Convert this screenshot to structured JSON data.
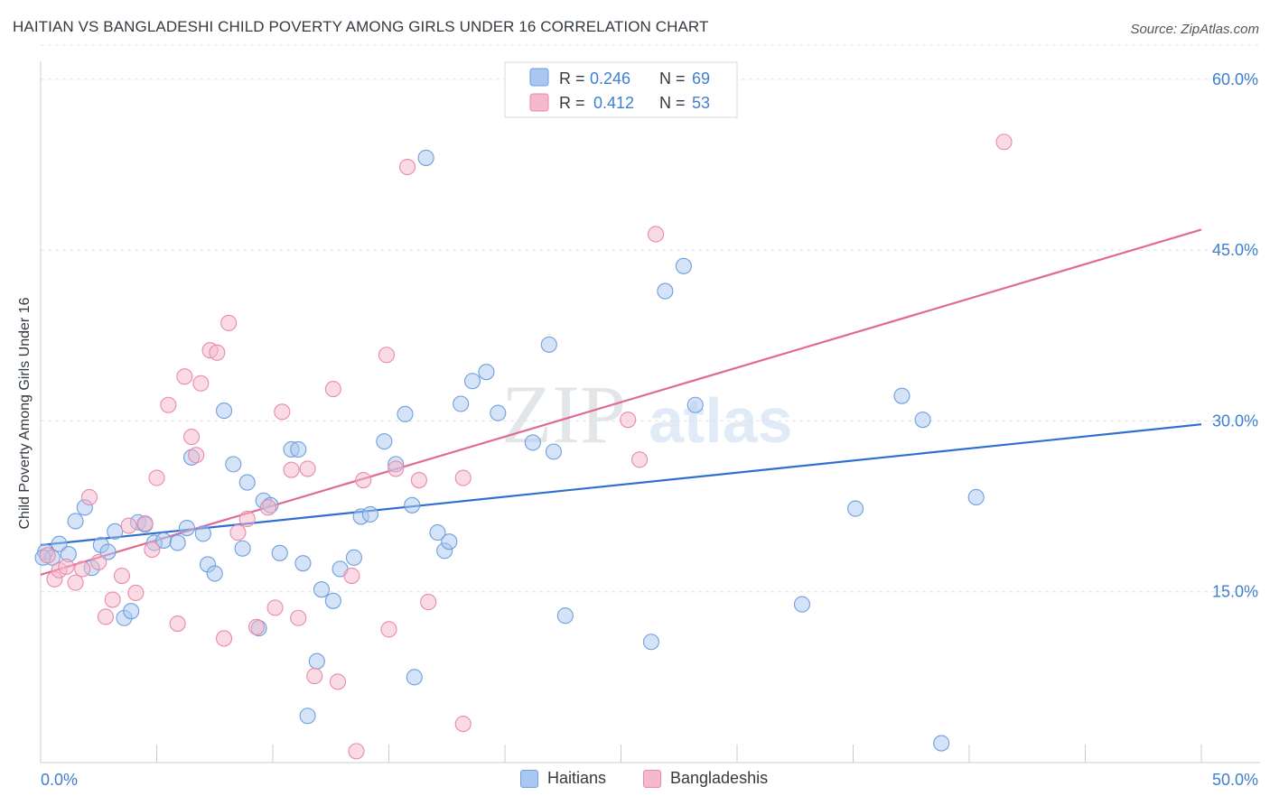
{
  "header": {
    "title": "HAITIAN VS BANGLADESHI CHILD POVERTY AMONG GIRLS UNDER 16 CORRELATION CHART",
    "source": "Source: ZipAtlas.com"
  },
  "watermark": {
    "zip": "ZIP",
    "atlas": "atlas"
  },
  "colors": {
    "haitians_fill": "#a9c7f0",
    "haitians_stroke": "#6f9fdc",
    "haitians_line": "#2f6fd0",
    "bangladeshis_fill": "#f6b8cc",
    "bangladeshis_stroke": "#e98aa9",
    "bangladeshis_line": "#e06a93",
    "tick_label": "#3f7fd0",
    "grid": "#dde1e6"
  },
  "legend": {
    "r_label": "R =",
    "n_label": "N =",
    "rows": [
      {
        "r": "0.246",
        "n": "69"
      },
      {
        "r": "0.412",
        "n": "53"
      }
    ]
  },
  "chart_data": {
    "type": "scatter",
    "title": "HAITIAN VS BANGLADESHI CHILD POVERTY AMONG GIRLS UNDER 16 CORRELATION CHART",
    "xlabel": "",
    "ylabel": "Child Poverty Among Girls Under 16",
    "xlim": [
      0,
      50
    ],
    "ylim": [
      0,
      63
    ],
    "x_tick_labels": [
      "0.0%",
      "50.0%"
    ],
    "y_ticks": [
      15,
      30,
      45,
      60
    ],
    "y_tick_labels": [
      "15.0%",
      "30.0%",
      "45.0%",
      "60.0%"
    ],
    "grid": true,
    "legend_position": "top-center",
    "series": [
      {
        "name": "Haitians",
        "trend": {
          "x": [
            0,
            50
          ],
          "y": [
            19.1,
            29.7
          ]
        },
        "points": [
          [
            0.2,
            18.5
          ],
          [
            0.5,
            18.0
          ],
          [
            0.8,
            19.2
          ],
          [
            1.2,
            18.3
          ],
          [
            1.5,
            21.2
          ],
          [
            1.9,
            22.4
          ],
          [
            2.2,
            17.1
          ],
          [
            2.6,
            19.1
          ],
          [
            2.9,
            18.5
          ],
          [
            3.2,
            20.3
          ],
          [
            3.6,
            12.7
          ],
          [
            3.9,
            13.3
          ],
          [
            4.2,
            21.1
          ],
          [
            4.5,
            20.9
          ],
          [
            4.9,
            19.3
          ],
          [
            5.3,
            19.5
          ],
          [
            5.9,
            19.3
          ],
          [
            6.3,
            20.6
          ],
          [
            6.5,
            26.8
          ],
          [
            7.0,
            20.1
          ],
          [
            7.2,
            17.4
          ],
          [
            7.5,
            16.6
          ],
          [
            7.9,
            30.9
          ],
          [
            8.3,
            26.2
          ],
          [
            8.7,
            18.8
          ],
          [
            8.9,
            24.6
          ],
          [
            9.4,
            11.8
          ],
          [
            9.6,
            23.0
          ],
          [
            9.9,
            22.6
          ],
          [
            10.3,
            18.4
          ],
          [
            10.8,
            27.5
          ],
          [
            11.1,
            27.5
          ],
          [
            11.3,
            17.5
          ],
          [
            11.5,
            4.1
          ],
          [
            11.9,
            8.9
          ],
          [
            12.1,
            15.2
          ],
          [
            12.6,
            14.2
          ],
          [
            12.9,
            17.0
          ],
          [
            13.5,
            18.0
          ],
          [
            13.8,
            21.6
          ],
          [
            14.2,
            21.8
          ],
          [
            14.8,
            28.2
          ],
          [
            15.3,
            26.2
          ],
          [
            15.7,
            30.6
          ],
          [
            16.0,
            22.6
          ],
          [
            16.1,
            7.5
          ],
          [
            16.6,
            53.1
          ],
          [
            17.1,
            20.2
          ],
          [
            17.4,
            18.6
          ],
          [
            17.6,
            19.4
          ],
          [
            18.1,
            31.5
          ],
          [
            18.6,
            33.5
          ],
          [
            19.2,
            34.3
          ],
          [
            19.7,
            30.7
          ],
          [
            21.2,
            28.1
          ],
          [
            21.9,
            36.7
          ],
          [
            22.1,
            27.3
          ],
          [
            22.6,
            12.9
          ],
          [
            26.3,
            10.6
          ],
          [
            26.9,
            41.4
          ],
          [
            27.7,
            43.6
          ],
          [
            28.2,
            31.4
          ],
          [
            32.8,
            13.9
          ],
          [
            35.1,
            22.3
          ],
          [
            37.1,
            32.2
          ],
          [
            38.0,
            30.1
          ],
          [
            38.8,
            1.7
          ],
          [
            40.3,
            23.3
          ],
          [
            0.1,
            18.0
          ]
        ]
      },
      {
        "name": "Bangladeshis",
        "trend": {
          "x": [
            0,
            50
          ],
          "y": [
            16.5,
            46.8
          ]
        },
        "points": [
          [
            0.3,
            18.2
          ],
          [
            0.6,
            16.1
          ],
          [
            0.8,
            16.9
          ],
          [
            1.1,
            17.2
          ],
          [
            1.5,
            15.8
          ],
          [
            1.8,
            17.0
          ],
          [
            2.1,
            23.3
          ],
          [
            2.5,
            17.6
          ],
          [
            2.8,
            12.8
          ],
          [
            3.1,
            14.3
          ],
          [
            3.5,
            16.4
          ],
          [
            3.8,
            20.8
          ],
          [
            4.1,
            14.9
          ],
          [
            4.5,
            21.0
          ],
          [
            4.8,
            18.7
          ],
          [
            5.0,
            25.0
          ],
          [
            5.5,
            31.4
          ],
          [
            5.9,
            12.2
          ],
          [
            6.2,
            33.9
          ],
          [
            6.5,
            28.6
          ],
          [
            6.7,
            27.0
          ],
          [
            6.9,
            33.3
          ],
          [
            7.3,
            36.2
          ],
          [
            7.6,
            36.0
          ],
          [
            7.9,
            10.9
          ],
          [
            8.1,
            38.6
          ],
          [
            8.5,
            20.2
          ],
          [
            8.9,
            21.4
          ],
          [
            9.3,
            11.9
          ],
          [
            9.8,
            22.4
          ],
          [
            10.1,
            13.6
          ],
          [
            10.4,
            30.8
          ],
          [
            10.8,
            25.7
          ],
          [
            11.1,
            12.7
          ],
          [
            11.5,
            25.8
          ],
          [
            11.8,
            7.6
          ],
          [
            12.6,
            32.8
          ],
          [
            12.8,
            7.1
          ],
          [
            13.4,
            16.4
          ],
          [
            13.6,
            1.0
          ],
          [
            13.9,
            24.8
          ],
          [
            14.9,
            35.8
          ],
          [
            15.0,
            11.7
          ],
          [
            15.3,
            25.8
          ],
          [
            15.8,
            52.3
          ],
          [
            16.3,
            24.8
          ],
          [
            16.7,
            14.1
          ],
          [
            18.2,
            25.0
          ],
          [
            18.2,
            3.4
          ],
          [
            25.3,
            30.1
          ],
          [
            25.8,
            26.6
          ],
          [
            26.5,
            46.4
          ],
          [
            41.5,
            54.5
          ]
        ]
      }
    ]
  },
  "bottom_legend": {
    "items": [
      "Haitians",
      "Bangladeshis"
    ]
  }
}
